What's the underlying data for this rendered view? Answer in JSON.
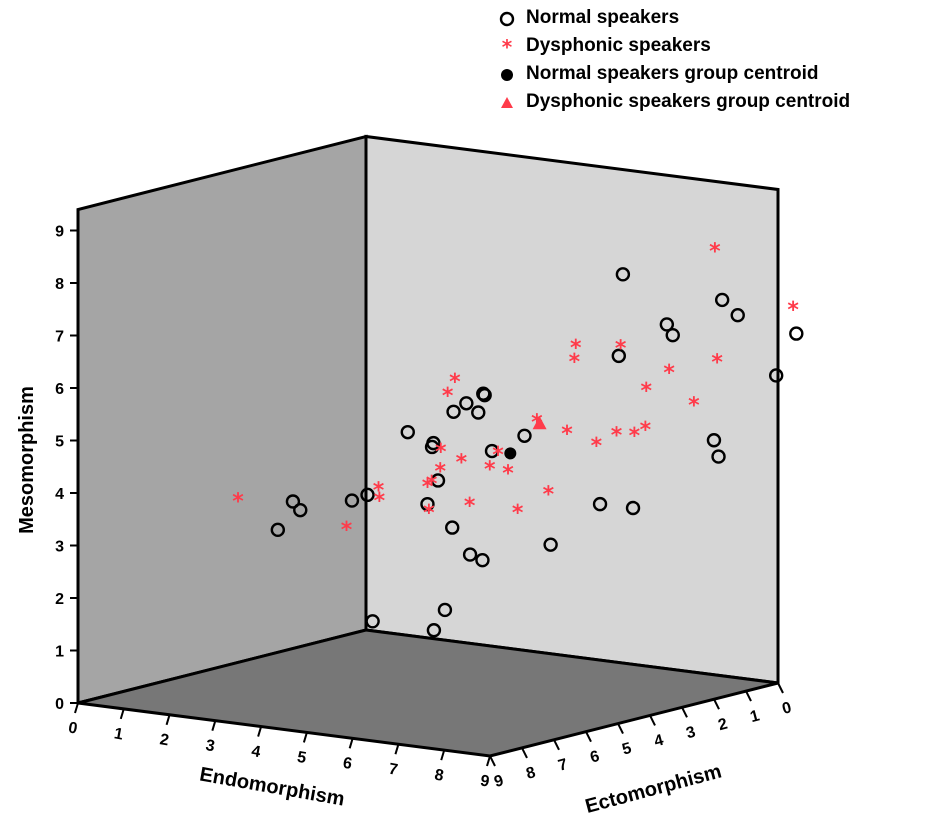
{
  "chart_data": {
    "type": "scatter",
    "projection": "3d",
    "axes": {
      "x": {
        "label": "Endomorphism",
        "range": [
          0,
          9
        ],
        "ticks": [
          0,
          1,
          2,
          3,
          4,
          5,
          6,
          7,
          8,
          9
        ]
      },
      "y": {
        "label": "Ectomorphism",
        "range": [
          0,
          9
        ],
        "ticks": [
          0,
          1,
          2,
          3,
          4,
          5,
          6,
          7,
          8,
          9
        ]
      },
      "z": {
        "label": "Mesomorphism",
        "range": [
          0,
          9
        ],
        "ticks": [
          0,
          1,
          2,
          3,
          4,
          5,
          6,
          7,
          8,
          9
        ]
      }
    },
    "legend_position": "top-right",
    "series": [
      {
        "name": "Normal speakers",
        "marker": "open-circle",
        "color": "#000000",
        "points": [
          [
            1.2,
            4.0,
            3.2
          ],
          [
            0.8,
            3.9,
            2.6
          ],
          [
            1.5,
            4.2,
            3.1
          ],
          [
            2.2,
            3.1,
            3.3
          ],
          [
            2.0,
            3.3,
            3.2
          ],
          [
            3.3,
            2.8,
            3.2
          ],
          [
            3.6,
            2.9,
            3.7
          ],
          [
            2.8,
            2.7,
            4.5
          ],
          [
            3.4,
            2.8,
            4.3
          ],
          [
            3.5,
            2.9,
            4.4
          ],
          [
            3.8,
            2.3,
            5.1
          ],
          [
            4.1,
            2.2,
            5.3
          ],
          [
            4.2,
            2.5,
            5.0
          ],
          [
            3.8,
            2.7,
            5.0
          ],
          [
            4.5,
            2.5,
            4.3
          ],
          [
            4.2,
            2.3,
            5.3
          ],
          [
            5.0,
            2.2,
            4.6
          ],
          [
            4.0,
            3.6,
            1.0
          ],
          [
            4.4,
            3.6,
            3.0
          ],
          [
            5.0,
            3.9,
            2.6
          ],
          [
            5.2,
            3.8,
            2.5
          ],
          [
            4.8,
            4.4,
            1.6
          ],
          [
            6.2,
            3.1,
            2.8
          ],
          [
            7.0,
            2.7,
            3.6
          ],
          [
            6.8,
            1.7,
            7.8
          ],
          [
            7.9,
            1.9,
            7.0
          ],
          [
            7.2,
            2.4,
            6.4
          ],
          [
            7.4,
            1.0,
            6.6
          ],
          [
            8.2,
            0.6,
            7.3
          ],
          [
            8.4,
            0.4,
            7.0
          ],
          [
            9.4,
            0.0,
            6.7
          ],
          [
            9.1,
            0.2,
            5.9
          ],
          [
            8.3,
            1.0,
            4.7
          ],
          [
            8.4,
            1.0,
            4.4
          ],
          [
            8.0,
            3.1,
            3.7
          ],
          [
            3.5,
            4.8,
            1.3
          ]
        ]
      },
      {
        "name": "Dysphonic speakers",
        "marker": "star",
        "color": "#ff3b4a",
        "points": [
          [
            0.0,
            4.0,
            3.1
          ],
          [
            3.8,
            1.0,
            3.6
          ],
          [
            2.3,
            2.9,
            3.4
          ],
          [
            2.6,
            3.3,
            3.3
          ],
          [
            2.3,
            3.9,
            2.8
          ],
          [
            3.4,
            2.9,
            3.1
          ],
          [
            3.3,
            2.4,
            3.8
          ],
          [
            3.1,
            2.1,
            4.1
          ],
          [
            3.2,
            1.8,
            5.4
          ],
          [
            3.6,
            2.6,
            5.3
          ],
          [
            3.6,
            3.1,
            3.7
          ],
          [
            4.5,
            3.2,
            3.4
          ],
          [
            4.8,
            3.0,
            4.1
          ],
          [
            4.7,
            2.6,
            4.3
          ],
          [
            5.2,
            2.1,
            4.9
          ],
          [
            5.6,
            1.5,
            6.0
          ],
          [
            5.7,
            1.6,
            6.3
          ],
          [
            6.0,
            2.3,
            4.8
          ],
          [
            6.4,
            1.2,
            6.3
          ],
          [
            6.5,
            2.1,
            4.6
          ],
          [
            6.8,
            1.9,
            4.8
          ],
          [
            7.1,
            1.4,
            5.6
          ],
          [
            7.4,
            2.2,
            4.9
          ],
          [
            7.6,
            1.4,
            6.0
          ],
          [
            7.5,
            2.0,
            5.0
          ],
          [
            8.0,
            1.2,
            5.4
          ],
          [
            8.3,
            0.9,
            6.2
          ],
          [
            7.9,
            0.4,
            8.2
          ],
          [
            9.4,
            0.1,
            7.2
          ],
          [
            5.9,
            3.7,
            3.5
          ],
          [
            6.5,
            3.6,
            3.9
          ],
          [
            4.6,
            3.6,
            4.3
          ],
          [
            4.0,
            3.8,
            3.8
          ]
        ]
      },
      {
        "name": "Normal speakers group centroid",
        "marker": "filled-circle",
        "color": "#000000",
        "points": [
          [
            4.9,
            2.5,
            4.3
          ]
        ]
      },
      {
        "name": "Dysphonic speakers group centroid",
        "marker": "triangle",
        "color": "#ff3b4a",
        "points": [
          [
            5.4,
            2.3,
            4.9
          ]
        ]
      }
    ]
  },
  "legend": {
    "items": [
      {
        "label": "Normal speakers",
        "icon": "open-circle-icon"
      },
      {
        "label": "Dysphonic speakers",
        "icon": "star-icon"
      },
      {
        "label": "Normal speakers group centroid",
        "icon": "filled-circle-icon"
      },
      {
        "label": "Dysphonic speakers group centroid",
        "icon": "triangle-icon"
      }
    ]
  }
}
